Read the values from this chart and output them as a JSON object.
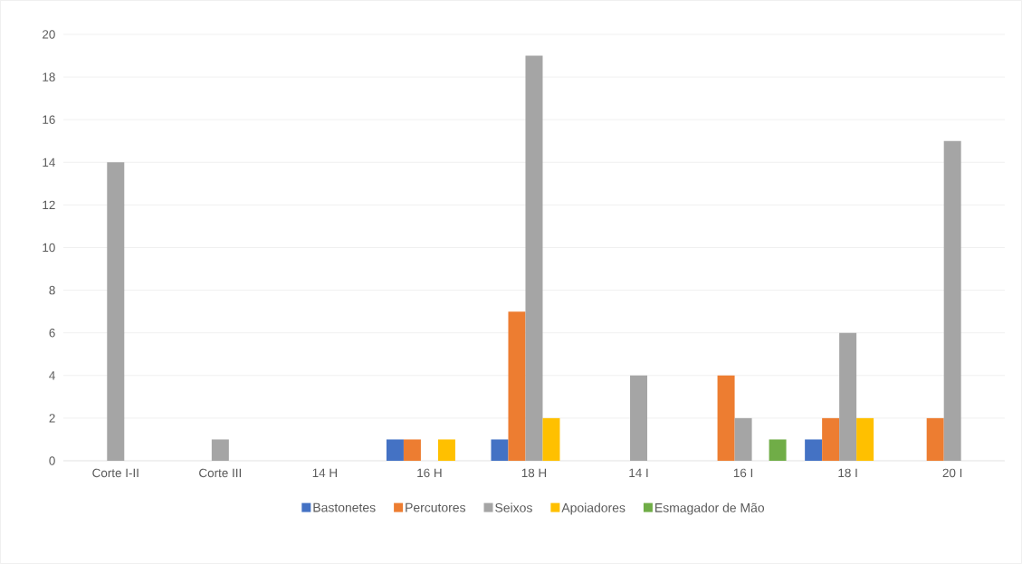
{
  "chart_data": {
    "type": "bar",
    "categories": [
      "Corte I-II",
      "Corte III",
      "14 H",
      "16 H",
      "18 H",
      "14 I",
      "16 I",
      "18 I",
      "20 I"
    ],
    "series": [
      {
        "name": "Bastonetes",
        "color": "#4472c4",
        "values": [
          0,
          0,
          0,
          1,
          1,
          0,
          0,
          1,
          0
        ]
      },
      {
        "name": "Percutores",
        "color": "#ed7d31",
        "values": [
          0,
          0,
          0,
          1,
          7,
          0,
          4,
          2,
          2
        ]
      },
      {
        "name": "Seixos",
        "color": "#a5a5a5",
        "values": [
          14,
          1,
          0,
          0,
          19,
          4,
          2,
          6,
          15
        ]
      },
      {
        "name": "Apoiadores",
        "color": "#ffc000",
        "values": [
          0,
          0,
          0,
          1,
          2,
          0,
          0,
          2,
          0
        ]
      },
      {
        "name": "Esmagador de Mão",
        "color": "#70ad47",
        "values": [
          0,
          0,
          0,
          0,
          0,
          0,
          1,
          0,
          0
        ]
      }
    ],
    "ylim": [
      0,
      20
    ],
    "yticks": [
      0,
      2,
      4,
      6,
      8,
      10,
      12,
      14,
      16,
      18,
      20
    ],
    "grid": "y",
    "legend": "bottom"
  }
}
